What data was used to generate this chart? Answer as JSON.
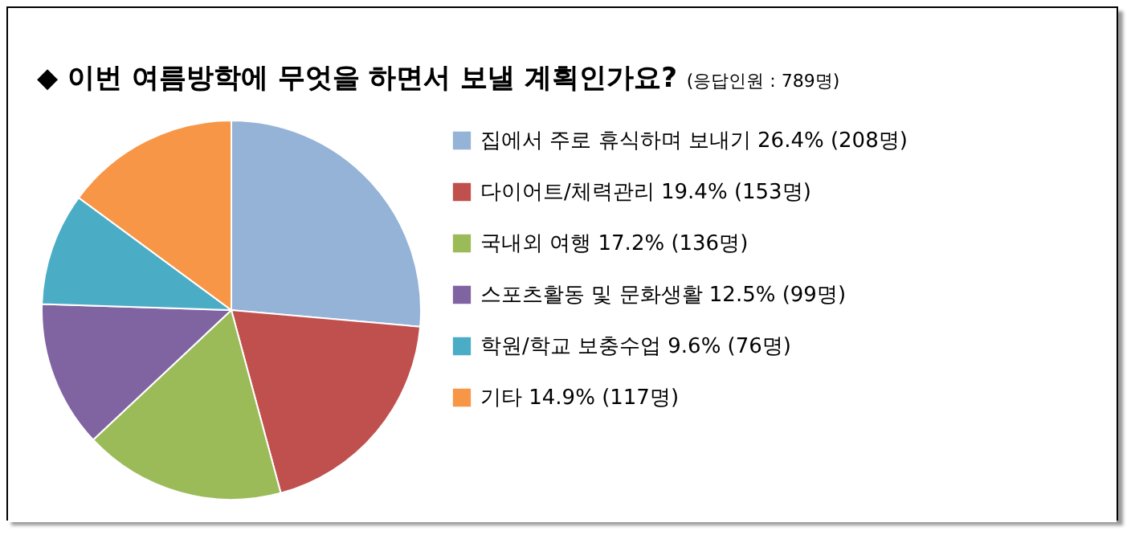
{
  "chart_data": {
    "type": "pie",
    "title": "◆ 이번 여름방학에 무엇을 하면서 보낼 계획인가요?",
    "subtitle": "(응답인원 : 789명)",
    "categories": [
      "집에서 주로 휴식하며 보내기",
      "다이어트/체력관리",
      "국내외 여행",
      "스포츠활동 및 문화생활",
      "학원/학교 보충수업",
      "기타"
    ],
    "values": [
      26.4,
      19.4,
      17.2,
      12.5,
      9.6,
      14.9
    ],
    "value_labels": [
      "26.4% (208명)",
      "19.4% (153명)",
      "17.2% (136명)",
      "12.5% (99명)",
      "9.6% (76명)",
      "14.9% (117명)"
    ],
    "colors": [
      "#95b3d7",
      "#c0504d",
      "#9bbb59",
      "#8064a2",
      "#4bacc6",
      "#f79646"
    ],
    "legend": "right"
  }
}
